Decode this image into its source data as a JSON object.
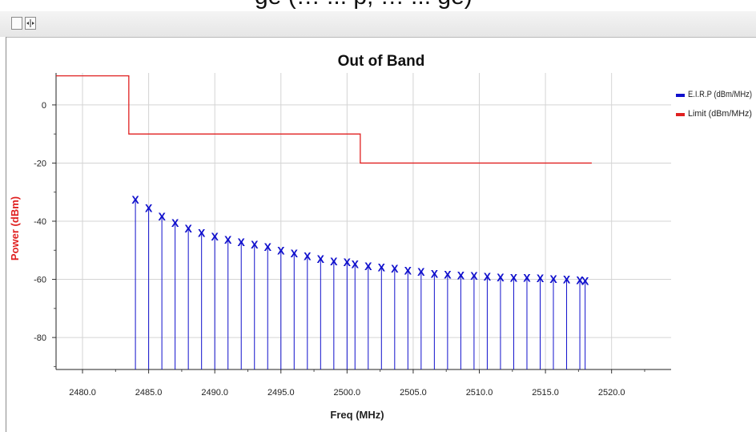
{
  "cut_text": "ge (… ... p, … ... ge)",
  "toolbar": {
    "buttons": [
      {
        "name": "select-tool-button"
      },
      {
        "name": "marker-tool-button"
      }
    ]
  },
  "chart_data": {
    "type": "line",
    "title": "Out of Band",
    "xlabel": "Freq (MHz)",
    "ylabel": "Power (dBm)",
    "xlim": [
      2478.0,
      2524.5
    ],
    "ylim": [
      -91,
      11
    ],
    "x_ticks": [
      "2480.0",
      "2485.0",
      "2490.0",
      "2495.0",
      "2500.0",
      "2505.0",
      "2510.0",
      "2515.0",
      "2520.0"
    ],
    "x_tick_values": [
      2480,
      2485,
      2490,
      2495,
      2500,
      2505,
      2510,
      2515,
      2520
    ],
    "y_ticks": [
      "0",
      "-20",
      "-40",
      "-60",
      "-80"
    ],
    "y_tick_values": [
      0,
      -20,
      -40,
      -60,
      -80
    ],
    "grid": true,
    "legend_position": "top-right",
    "colors": {
      "eirp": "#1010cc",
      "limit": "#e02020",
      "ylabel": "#e02020"
    },
    "series": [
      {
        "name": "E.I.R.P (dBm/MHz)",
        "style": "stem",
        "marker": "X",
        "x": [
          2484.0,
          2485.0,
          2486.0,
          2487.0,
          2488.0,
          2489.0,
          2490.0,
          2491.0,
          2492.0,
          2493.0,
          2494.0,
          2495.0,
          2496.0,
          2497.0,
          2498.0,
          2499.0,
          2500.0,
          2500.6,
          2501.6,
          2502.6,
          2503.6,
          2504.6,
          2505.6,
          2506.6,
          2507.6,
          2508.6,
          2509.6,
          2510.6,
          2511.6,
          2512.6,
          2513.6,
          2514.6,
          2515.6,
          2516.6,
          2517.6,
          2518.0
        ],
        "y": [
          -32.5,
          -35.5,
          -38.3,
          -40.5,
          -42.5,
          -44.0,
          -45.2,
          -46.3,
          -47.2,
          -48.0,
          -48.8,
          -50.0,
          -51.0,
          -52.0,
          -53.0,
          -53.8,
          -54.0,
          -54.7,
          -55.4,
          -55.8,
          -56.2,
          -56.9,
          -57.4,
          -58.0,
          -58.4,
          -58.6,
          -58.8,
          -59.0,
          -59.3,
          -59.4,
          -59.5,
          -59.6,
          -59.8,
          -60.0,
          -60.2,
          -60.5
        ]
      },
      {
        "name": "Limit (dBm/MHz)",
        "style": "step",
        "x": [
          2478.0,
          2483.5,
          2483.5,
          2501.0,
          2501.0,
          2518.5
        ],
        "y": [
          10,
          10,
          -10,
          -10,
          -20,
          -20
        ]
      }
    ]
  }
}
